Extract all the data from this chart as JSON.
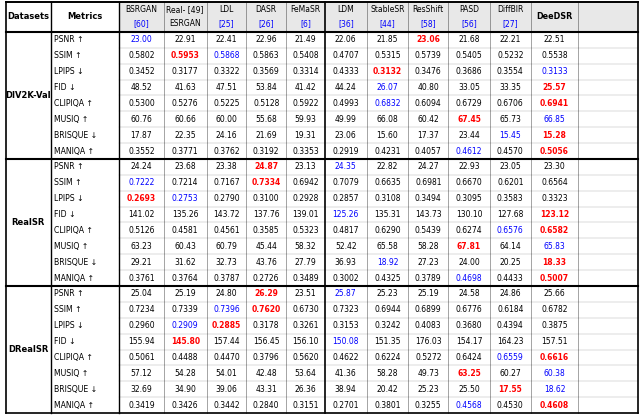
{
  "datasets": [
    "DIV2K-Val",
    "RealSR",
    "DRealSR"
  ],
  "metrics": [
    "PSNR ↑",
    "SSIM ↑",
    "LPIPS ↓",
    "FID ↓",
    "CLIPIQA ↑",
    "MUSIQ ↑",
    "BRISQUE ↓",
    "MANIQA ↑"
  ],
  "data": {
    "DIV2K-Val": {
      "PSNR ↑": [
        "23.00",
        "22.91",
        "22.41",
        "22.96",
        "21.49",
        "22.06",
        "21.85",
        "23.06",
        "21.68",
        "22.21",
        "22.51"
      ],
      "SSIM ↑": [
        "0.5802",
        "0.5953",
        "0.5868",
        "0.5863",
        "0.5408",
        "0.4707",
        "0.5315",
        "0.5739",
        "0.5405",
        "0.5232",
        "0.5538"
      ],
      "LPIPS ↓": [
        "0.3452",
        "0.3177",
        "0.3322",
        "0.3569",
        "0.3314",
        "0.4333",
        "0.3132",
        "0.3476",
        "0.3686",
        "0.3554",
        "0.3133"
      ],
      "FID ↓": [
        "48.52",
        "41.63",
        "47.51",
        "53.84",
        "41.42",
        "44.24",
        "26.07",
        "40.80",
        "33.05",
        "33.35",
        "25.57"
      ],
      "CLIPIQA ↑": [
        "0.5300",
        "0.5276",
        "0.5225",
        "0.5128",
        "0.5922",
        "0.4993",
        "0.6832",
        "0.6094",
        "0.6729",
        "0.6706",
        "0.6941"
      ],
      "MUSIQ ↑": [
        "60.76",
        "60.66",
        "60.00",
        "55.68",
        "59.93",
        "49.99",
        "66.08",
        "60.42",
        "67.45",
        "65.73",
        "66.85"
      ],
      "BRISQUE ↓": [
        "17.87",
        "22.35",
        "24.16",
        "21.69",
        "19.31",
        "23.06",
        "15.60",
        "17.37",
        "23.44",
        "15.45",
        "15.28"
      ],
      "MANIQA ↑": [
        "0.3552",
        "0.3771",
        "0.3762",
        "0.3192",
        "0.3353",
        "0.2919",
        "0.4231",
        "0.4057",
        "0.4612",
        "0.4570",
        "0.5056"
      ]
    },
    "RealSR": {
      "PSNR ↑": [
        "24.24",
        "23.68",
        "23.38",
        "24.87",
        "23.13",
        "24.35",
        "22.82",
        "24.27",
        "22.93",
        "23.05",
        "23.30"
      ],
      "SSIM ↑": [
        "0.7222",
        "0.7214",
        "0.7167",
        "0.7334",
        "0.6942",
        "0.7079",
        "0.6635",
        "0.6981",
        "0.6670",
        "0.6201",
        "0.6564"
      ],
      "LPIPS ↓": [
        "0.2693",
        "0.2753",
        "0.2790",
        "0.3100",
        "0.2928",
        "0.2857",
        "0.3108",
        "0.3494",
        "0.3095",
        "0.3583",
        "0.3323"
      ],
      "FID ↓": [
        "141.02",
        "135.26",
        "143.72",
        "137.76",
        "139.01",
        "125.26",
        "135.31",
        "143.73",
        "130.10",
        "127.68",
        "123.12"
      ],
      "CLIPIQA ↑": [
        "0.5126",
        "0.4581",
        "0.4561",
        "0.3585",
        "0.5323",
        "0.4817",
        "0.6290",
        "0.5439",
        "0.6274",
        "0.6576",
        "0.6582"
      ],
      "MUSIQ ↑": [
        "63.23",
        "60.43",
        "60.79",
        "45.44",
        "58.32",
        "52.42",
        "65.58",
        "58.28",
        "67.81",
        "64.14",
        "65.83"
      ],
      "BRISQUE ↓": [
        "29.21",
        "31.62",
        "32.73",
        "43.76",
        "27.79",
        "36.93",
        "18.92",
        "27.23",
        "24.00",
        "20.25",
        "18.33"
      ],
      "MANIQA ↑": [
        "0.3761",
        "0.3764",
        "0.3787",
        "0.2726",
        "0.3489",
        "0.3002",
        "0.4325",
        "0.3789",
        "0.4698",
        "0.4433",
        "0.5007"
      ]
    },
    "DRealSR": {
      "PSNR ↑": [
        "25.04",
        "25.19",
        "24.80",
        "26.29",
        "23.51",
        "25.87",
        "25.23",
        "25.19",
        "24.58",
        "24.86",
        "25.66"
      ],
      "SSIM ↑": [
        "0.7234",
        "0.7339",
        "0.7396",
        "0.7620",
        "0.6730",
        "0.7323",
        "0.6944",
        "0.6899",
        "0.6776",
        "0.6184",
        "0.6782"
      ],
      "LPIPS ↓": [
        "0.2960",
        "0.2909",
        "0.2885",
        "0.3178",
        "0.3261",
        "0.3153",
        "0.3242",
        "0.4083",
        "0.3680",
        "0.4394",
        "0.3875"
      ],
      "FID ↓": [
        "155.94",
        "145.80",
        "157.44",
        "156.45",
        "156.10",
        "150.08",
        "151.35",
        "176.03",
        "154.17",
        "164.23",
        "157.51"
      ],
      "CLIPIQA ↑": [
        "0.5061",
        "0.4488",
        "0.4470",
        "0.3796",
        "0.5620",
        "0.4622",
        "0.6224",
        "0.5272",
        "0.6424",
        "0.6559",
        "0.6616"
      ],
      "MUSIQ ↑": [
        "57.12",
        "54.28",
        "54.01",
        "42.48",
        "53.64",
        "41.36",
        "58.28",
        "49.73",
        "63.25",
        "60.27",
        "60.38"
      ],
      "BRISQUE ↓": [
        "32.69",
        "34.90",
        "39.06",
        "43.31",
        "26.36",
        "38.94",
        "20.42",
        "25.23",
        "25.50",
        "17.55",
        "18.62"
      ],
      "MANIQA ↑": [
        "0.3419",
        "0.3426",
        "0.3442",
        "0.2840",
        "0.3151",
        "0.2701",
        "0.3801",
        "0.3255",
        "0.4568",
        "0.4530",
        "0.4608"
      ]
    }
  },
  "colors": {
    "DIV2K-Val": {
      "PSNR ↑": [
        "blue",
        "black",
        "black",
        "black",
        "black",
        "black",
        "black",
        "red",
        "black",
        "black",
        "black"
      ],
      "SSIM ↑": [
        "black",
        "red",
        "blue",
        "black",
        "black",
        "black",
        "black",
        "black",
        "black",
        "black",
        "black"
      ],
      "LPIPS ↓": [
        "black",
        "black",
        "black",
        "black",
        "black",
        "black",
        "red",
        "black",
        "black",
        "black",
        "blue"
      ],
      "FID ↓": [
        "black",
        "black",
        "black",
        "black",
        "black",
        "black",
        "blue",
        "black",
        "black",
        "black",
        "red"
      ],
      "CLIPIQA ↑": [
        "black",
        "black",
        "black",
        "black",
        "black",
        "black",
        "blue",
        "black",
        "black",
        "black",
        "red"
      ],
      "MUSIQ ↑": [
        "black",
        "black",
        "black",
        "black",
        "black",
        "black",
        "black",
        "black",
        "red",
        "black",
        "blue"
      ],
      "BRISQUE ↓": [
        "black",
        "black",
        "black",
        "black",
        "black",
        "black",
        "black",
        "black",
        "black",
        "blue",
        "red"
      ],
      "MANIQA ↑": [
        "black",
        "black",
        "black",
        "black",
        "black",
        "black",
        "black",
        "black",
        "blue",
        "black",
        "red"
      ]
    },
    "RealSR": {
      "PSNR ↑": [
        "black",
        "black",
        "black",
        "red",
        "black",
        "blue",
        "black",
        "black",
        "black",
        "black",
        "black"
      ],
      "SSIM ↑": [
        "blue",
        "black",
        "black",
        "red",
        "black",
        "black",
        "black",
        "black",
        "black",
        "black",
        "black"
      ],
      "LPIPS ↓": [
        "red",
        "blue",
        "black",
        "black",
        "black",
        "black",
        "black",
        "black",
        "black",
        "black",
        "black"
      ],
      "FID ↓": [
        "black",
        "black",
        "black",
        "black",
        "black",
        "blue",
        "black",
        "black",
        "black",
        "black",
        "red"
      ],
      "CLIPIQA ↑": [
        "black",
        "black",
        "black",
        "black",
        "black",
        "black",
        "black",
        "black",
        "black",
        "blue",
        "red"
      ],
      "MUSIQ ↑": [
        "black",
        "black",
        "black",
        "black",
        "black",
        "black",
        "black",
        "black",
        "red",
        "black",
        "blue"
      ],
      "BRISQUE ↓": [
        "black",
        "black",
        "black",
        "black",
        "black",
        "black",
        "blue",
        "black",
        "black",
        "black",
        "red"
      ],
      "MANIQA ↑": [
        "black",
        "black",
        "black",
        "black",
        "black",
        "black",
        "black",
        "black",
        "blue",
        "black",
        "red"
      ]
    },
    "DRealSR": {
      "PSNR ↑": [
        "black",
        "black",
        "black",
        "red",
        "black",
        "blue",
        "black",
        "black",
        "black",
        "black",
        "black"
      ],
      "SSIM ↑": [
        "black",
        "black",
        "blue",
        "red",
        "black",
        "black",
        "black",
        "black",
        "black",
        "black",
        "black"
      ],
      "LPIPS ↓": [
        "black",
        "blue",
        "red",
        "black",
        "black",
        "black",
        "black",
        "black",
        "black",
        "black",
        "black"
      ],
      "FID ↓": [
        "black",
        "red",
        "black",
        "black",
        "black",
        "blue",
        "black",
        "black",
        "black",
        "black",
        "black"
      ],
      "CLIPIQA ↑": [
        "black",
        "black",
        "black",
        "black",
        "black",
        "black",
        "black",
        "black",
        "black",
        "blue",
        "red"
      ],
      "MUSIQ ↑": [
        "black",
        "black",
        "black",
        "black",
        "black",
        "black",
        "black",
        "black",
        "red",
        "black",
        "blue"
      ],
      "BRISQUE ↓": [
        "black",
        "black",
        "black",
        "black",
        "black",
        "black",
        "black",
        "black",
        "black",
        "red",
        "blue"
      ],
      "MANIQA ↑": [
        "black",
        "black",
        "black",
        "black",
        "black",
        "black",
        "black",
        "black",
        "blue",
        "black",
        "red"
      ]
    }
  },
  "bold": {
    "DIV2K-Val": {
      "PSNR ↑": [
        false,
        false,
        false,
        false,
        false,
        false,
        false,
        true,
        false,
        false,
        false
      ],
      "SSIM ↑": [
        false,
        true,
        false,
        false,
        false,
        false,
        false,
        false,
        false,
        false,
        false
      ],
      "LPIPS ↓": [
        false,
        false,
        false,
        false,
        false,
        false,
        true,
        false,
        false,
        false,
        false
      ],
      "FID ↓": [
        false,
        false,
        false,
        false,
        false,
        false,
        false,
        false,
        false,
        false,
        true
      ],
      "CLIPIQA ↑": [
        false,
        false,
        false,
        false,
        false,
        false,
        false,
        false,
        false,
        false,
        true
      ],
      "MUSIQ ↑": [
        false,
        false,
        false,
        false,
        false,
        false,
        false,
        false,
        true,
        false,
        false
      ],
      "BRISQUE ↓": [
        false,
        false,
        false,
        false,
        false,
        false,
        false,
        false,
        false,
        false,
        true
      ],
      "MANIQA ↑": [
        false,
        false,
        false,
        false,
        false,
        false,
        false,
        false,
        false,
        false,
        true
      ]
    },
    "RealSR": {
      "PSNR ↑": [
        false,
        false,
        false,
        true,
        false,
        false,
        false,
        false,
        false,
        false,
        false
      ],
      "SSIM ↑": [
        false,
        false,
        false,
        true,
        false,
        false,
        false,
        false,
        false,
        false,
        false
      ],
      "LPIPS ↓": [
        true,
        false,
        false,
        false,
        false,
        false,
        false,
        false,
        false,
        false,
        false
      ],
      "FID ↓": [
        false,
        false,
        false,
        false,
        false,
        false,
        false,
        false,
        false,
        false,
        true
      ],
      "CLIPIQA ↑": [
        false,
        false,
        false,
        false,
        false,
        false,
        false,
        false,
        false,
        false,
        true
      ],
      "MUSIQ ↑": [
        false,
        false,
        false,
        false,
        false,
        false,
        false,
        false,
        true,
        false,
        false
      ],
      "BRISQUE ↓": [
        false,
        false,
        false,
        false,
        false,
        false,
        false,
        false,
        false,
        false,
        true
      ],
      "MANIQA ↑": [
        false,
        false,
        false,
        false,
        false,
        false,
        false,
        false,
        false,
        false,
        true
      ]
    },
    "DRealSR": {
      "PSNR ↑": [
        false,
        false,
        false,
        true,
        false,
        false,
        false,
        false,
        false,
        false,
        false
      ],
      "SSIM ↑": [
        false,
        false,
        false,
        true,
        false,
        false,
        false,
        false,
        false,
        false,
        false
      ],
      "LPIPS ↓": [
        false,
        false,
        true,
        false,
        false,
        false,
        false,
        false,
        false,
        false,
        false
      ],
      "FID ↓": [
        false,
        true,
        false,
        false,
        false,
        false,
        false,
        false,
        false,
        false,
        false
      ],
      "CLIPIQA ↑": [
        false,
        false,
        false,
        false,
        false,
        false,
        false,
        false,
        false,
        false,
        true
      ],
      "MUSIQ ↑": [
        false,
        false,
        false,
        false,
        false,
        false,
        false,
        false,
        true,
        false,
        false
      ],
      "BRISQUE ↓": [
        false,
        false,
        false,
        false,
        false,
        false,
        false,
        false,
        false,
        true,
        false
      ],
      "MANIQA ↑": [
        false,
        false,
        false,
        false,
        false,
        false,
        false,
        false,
        false,
        false,
        true
      ]
    }
  }
}
